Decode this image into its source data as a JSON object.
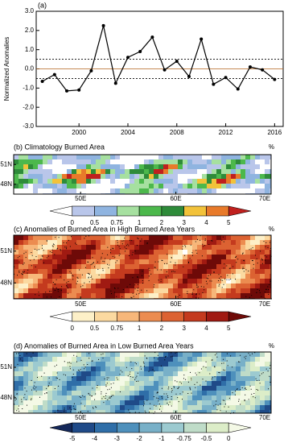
{
  "chart_data": {
    "type": "line",
    "title": "(a)",
    "y_label": "Normalized Anomalies",
    "x": [
      1997,
      1998,
      1999,
      2000,
      2001,
      2002,
      2003,
      2004,
      2005,
      2006,
      2007,
      2008,
      2009,
      2010,
      2011,
      2012,
      2013,
      2014,
      2015,
      2016
    ],
    "series": [
      {
        "color": "#000000",
        "values": [
          -0.65,
          -0.3,
          -1.15,
          -1.1,
          -0.1,
          2.25,
          -0.75,
          0.6,
          0.9,
          1.65,
          -0.05,
          0.4,
          -0.4,
          1.55,
          -0.8,
          -0.45,
          -1.05,
          0.1,
          -0.05,
          -0.55
        ]
      }
    ],
    "xlim": [
      1996.5,
      2016.7
    ],
    "xticks": [
      2000,
      2004,
      2008,
      2012,
      2016
    ],
    "ylim": [
      -3,
      3
    ],
    "yticks": [
      {
        "value": -3,
        "label": "-3.0"
      },
      {
        "value": -2,
        "label": "-2.0"
      },
      {
        "value": -1,
        "label": "-1.0"
      },
      {
        "value": 0,
        "label": "0.0"
      },
      {
        "value": 1,
        "label": "1.0"
      },
      {
        "value": 2,
        "label": "2.0"
      },
      {
        "value": 3,
        "label": "3.0"
      }
    ],
    "reference_lines": [
      {
        "value": 0.5,
        "style": "dashed",
        "color": "#000000"
      },
      {
        "value": 0,
        "style": "solid",
        "color": "#b5651d"
      },
      {
        "value": -0.5,
        "style": "dashed",
        "color": "#000000"
      }
    ]
  },
  "maps": [
    {
      "title": "(b) Climatology Burned Area",
      "unit": "%",
      "lat_labels": [
        "51N",
        "48N"
      ],
      "lon_labels": [
        "50E",
        "60E",
        "70E"
      ],
      "stippling": false,
      "colorbar": {
        "levels": [
          0,
          0.5,
          0.75,
          1,
          2,
          3,
          4,
          5
        ],
        "colors": [
          "#ffffff",
          "#b9c6ea",
          "#8fb4e0",
          "#a6e0a0",
          "#4cb84c",
          "#2e8b3a",
          "#f2c23a",
          "#e87a2a",
          "#c0201e"
        ]
      }
    },
    {
      "title": "(c) Anomalies of Burned Area in High Burned Area Years",
      "unit": "%",
      "lat_labels": [
        "51N",
        "48N"
      ],
      "lon_labels": [
        "50E",
        "60E",
        "70E"
      ],
      "stippling": true,
      "colorbar": {
        "levels": [
          0,
          0.5,
          0.75,
          1,
          2,
          3,
          4,
          5
        ],
        "colors": [
          "#ffffff",
          "#fdf0c8",
          "#fbd9a0",
          "#f7b77a",
          "#ec8c50",
          "#dc6232",
          "#c43a1e",
          "#a01a12",
          "#6e0a08"
        ]
      }
    },
    {
      "title": "(d) Anomalies of Burned Area in Low Burned Area Years",
      "unit": "%",
      "lat_labels": [
        "51N",
        "48N"
      ],
      "lon_labels": [
        "50E",
        "60E",
        "70E"
      ],
      "stippling": true,
      "colorbar": {
        "levels": [
          -5,
          -4,
          -3,
          -2,
          -1,
          -0.75,
          -0.5,
          0
        ],
        "colors": [
          "#14285a",
          "#1f4a88",
          "#2f6ea8",
          "#4e90bc",
          "#78b0c8",
          "#9ccad0",
          "#bfdcc8",
          "#dcedc8",
          "#f4f9e6"
        ]
      }
    }
  ]
}
